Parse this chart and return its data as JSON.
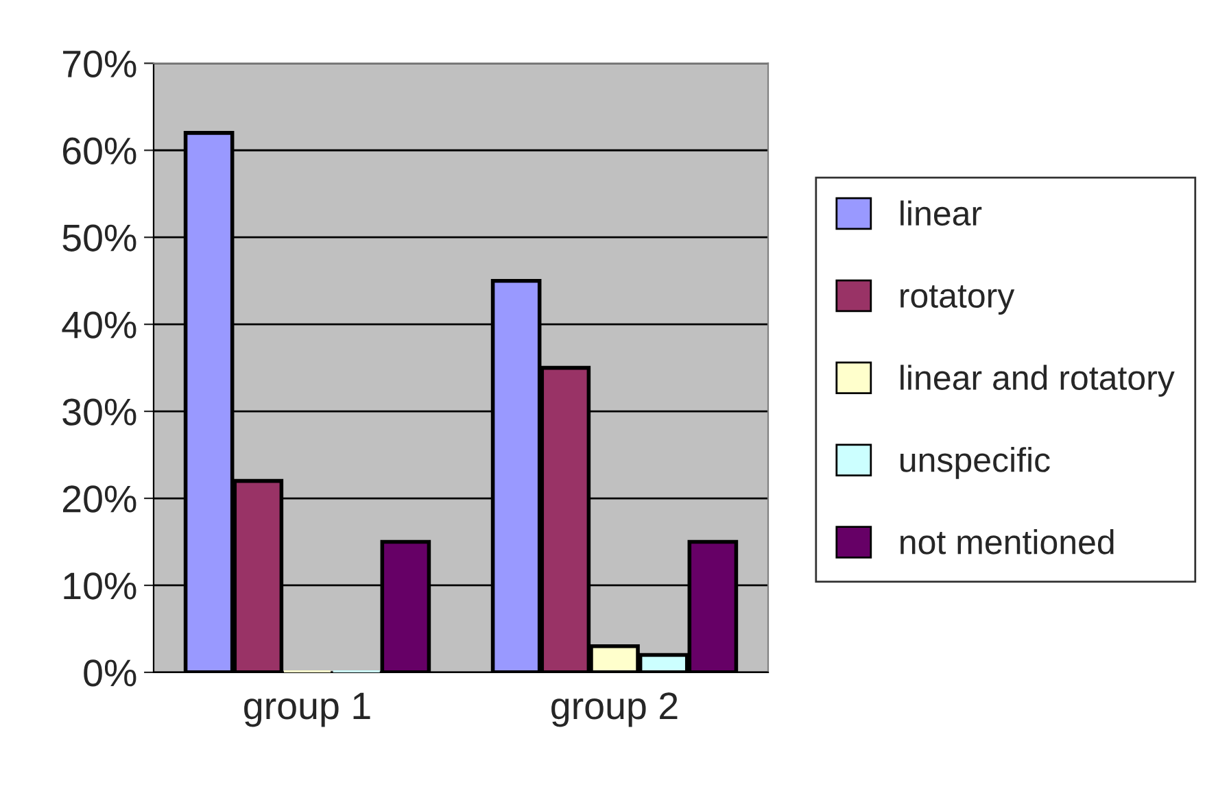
{
  "chart_data": {
    "type": "bar",
    "categories": [
      "group 1",
      "group 2"
    ],
    "series": [
      {
        "name": "linear",
        "color": "#9999ff",
        "values": [
          62,
          45
        ]
      },
      {
        "name": "rotatory",
        "color": "#993366",
        "values": [
          22,
          35
        ]
      },
      {
        "name": "linear and rotatory",
        "color": "#ffffcc",
        "values": [
          0,
          3
        ]
      },
      {
        "name": "unspecific",
        "color": "#ccffff",
        "values": [
          0,
          2
        ]
      },
      {
        "name": "not mentioned",
        "color": "#660066",
        "values": [
          15,
          15
        ]
      }
    ],
    "ylim": [
      0,
      70
    ],
    "yticks": [
      {
        "value": 0,
        "label": "0%"
      },
      {
        "value": 10,
        "label": "10%"
      },
      {
        "value": 20,
        "label": "20%"
      },
      {
        "value": 30,
        "label": "30%"
      },
      {
        "value": 40,
        "label": "40%"
      },
      {
        "value": 50,
        "label": "50%"
      },
      {
        "value": 60,
        "label": "60%"
      },
      {
        "value": 70,
        "label": "70%"
      }
    ],
    "grid": "y",
    "legend": "right"
  }
}
